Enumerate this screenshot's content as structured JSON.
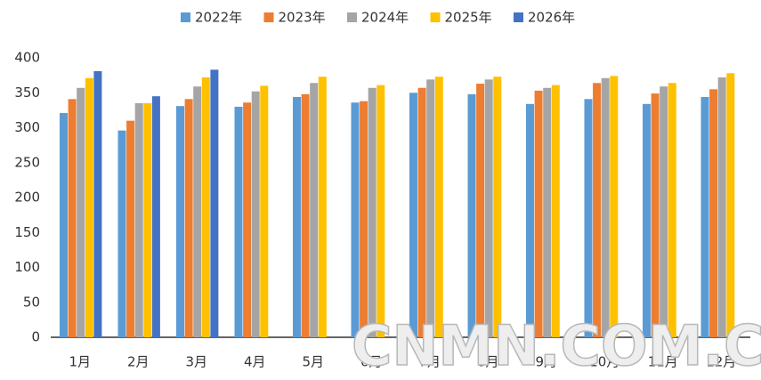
{
  "chart_data": {
    "type": "bar",
    "categories": [
      "1月",
      "2月",
      "3月",
      "4月",
      "5月",
      "6月",
      "7月",
      "8月",
      "9月",
      "10月",
      "11月",
      "12月"
    ],
    "series": [
      {
        "name": "2022年",
        "color": "#5b9bd5",
        "values": [
          321,
          296,
          331,
          330,
          344,
          336,
          350,
          348,
          334,
          341,
          334,
          344
        ]
      },
      {
        "name": "2023年",
        "color": "#ed7d31",
        "values": [
          341,
          310,
          341,
          336,
          348,
          338,
          357,
          363,
          353,
          364,
          349,
          355
        ]
      },
      {
        "name": "2024年",
        "color": "#a5a5a5",
        "values": [
          357,
          335,
          359,
          352,
          364,
          357,
          369,
          369,
          357,
          371,
          359,
          372
        ]
      },
      {
        "name": "2025年",
        "color": "#ffc000",
        "values": [
          371,
          335,
          372,
          360,
          373,
          361,
          373,
          373,
          361,
          374,
          364,
          378
        ]
      },
      {
        "name": "2026年",
        "color": "#4472c4",
        "values": [
          381,
          345,
          383,
          null,
          null,
          null,
          null,
          null,
          null,
          null,
          null,
          null
        ]
      }
    ],
    "ylim": [
      0,
      400
    ],
    "yticks": [
      0,
      50,
      100,
      150,
      200,
      250,
      300,
      350,
      400
    ],
    "grid": false,
    "legend": "top",
    "watermark": "CNMN.COM.CN"
  }
}
